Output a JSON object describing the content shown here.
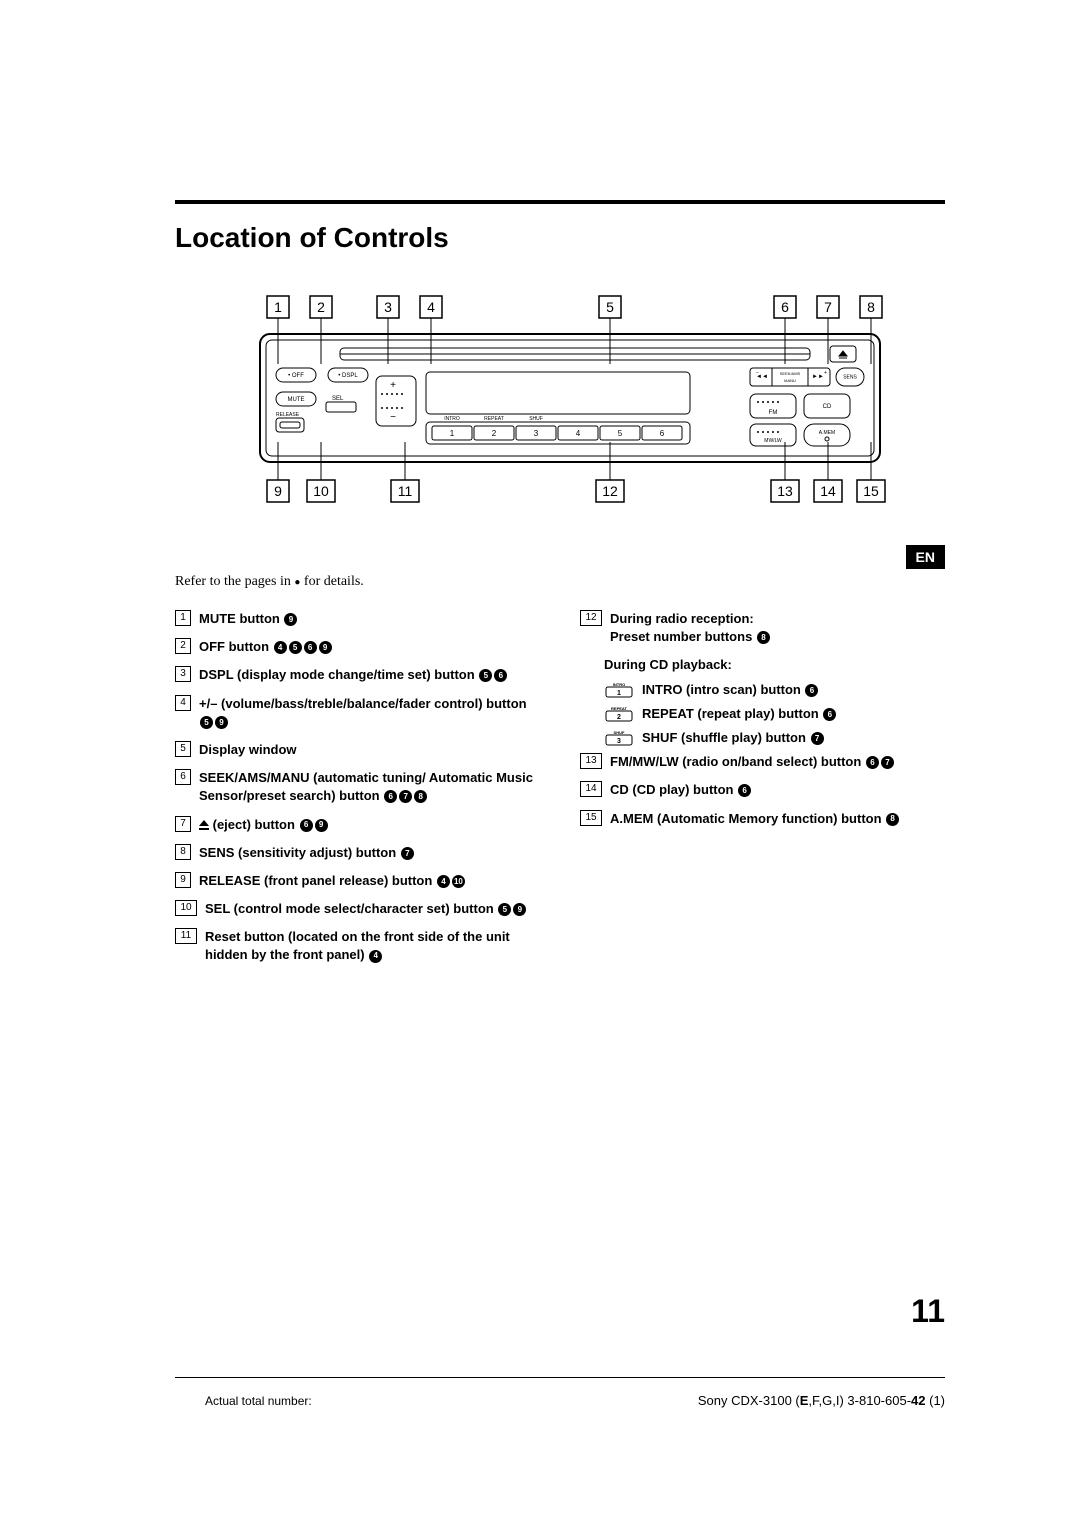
{
  "title": "Location of Controls",
  "refer_text": "Refer to the pages in ● for details.",
  "lang_tab": "EN",
  "page_number": "11",
  "footer_left": "Actual total number:",
  "footer_right_prefix": "Sony CDX-3100 (",
  "footer_right_bold1": "E",
  "footer_right_rest": ",F,G,I) 3-810-605-",
  "footer_right_bold2": "42",
  "footer_right_tail": " (1)",
  "callouts_top": [
    "1",
    "2",
    "3",
    "4",
    "5",
    "6",
    "7",
    "8"
  ],
  "callouts_bottom": [
    "9",
    "10",
    "11",
    "12",
    "13",
    "14",
    "15"
  ],
  "panel_labels": {
    "off": "OFF",
    "dspl": "DSPL",
    "mute": "MUTE",
    "sel": "SEL",
    "release": "RELEASE",
    "intro": "INTRO",
    "repeat": "REPEAT",
    "shuf": "SHUF",
    "keys": [
      "1",
      "2",
      "3",
      "4",
      "5",
      "6"
    ],
    "seek": "SEEK/AMS",
    "manu": "MANU",
    "sens": "SENS",
    "fm": "FM",
    "mwlw": "MW/LW",
    "cd": "CD",
    "amem": "A.MEM"
  },
  "left_items": [
    {
      "n": "1",
      "text": "MUTE button ",
      "refs": [
        "9"
      ]
    },
    {
      "n": "2",
      "text": "OFF button ",
      "refs": [
        "4",
        "5",
        "6",
        "9"
      ]
    },
    {
      "n": "3",
      "text": "DSPL (display mode change/time set) button ",
      "refs": [
        "5",
        "6"
      ]
    },
    {
      "n": "4",
      "text": "+/– (volume/bass/treble/balance/fader control) button ",
      "refs": [
        "5",
        "9"
      ]
    },
    {
      "n": "5",
      "text": "Display window",
      "refs": []
    },
    {
      "n": "6",
      "text": "SEEK/AMS/MANU (automatic tuning/ Automatic Music Sensor/preset search) button ",
      "refs": [
        "6",
        "7",
        "8"
      ]
    },
    {
      "n": "7",
      "text": "(eject) button ",
      "eject": true,
      "refs": [
        "6",
        "9"
      ]
    },
    {
      "n": "8",
      "text": "SENS (sensitivity adjust) button ",
      "refs": [
        "7"
      ]
    },
    {
      "n": "9",
      "text": "RELEASE (front panel release) button ",
      "refs": [
        "4",
        "10"
      ]
    },
    {
      "n": "10",
      "text": "SEL (control mode select/character set) button ",
      "refs": [
        "5",
        "9"
      ]
    },
    {
      "n": "11",
      "text": "Reset button (located on the front side of the unit hidden by the front panel) ",
      "refs": [
        "4"
      ]
    }
  ],
  "right_header": {
    "n": "12",
    "line1": "During radio reception:",
    "line2": "Preset number buttons ",
    "refs": [
      "8"
    ]
  },
  "right_sub_header": "During CD playback:",
  "right_subs": [
    {
      "key_top": "INTRO",
      "key_num": "1",
      "text": "INTRO (intro scan) button ",
      "refs": [
        "6"
      ]
    },
    {
      "key_top": "REPEAT",
      "key_num": "2",
      "text": "REPEAT (repeat play) button ",
      "refs": [
        "6"
      ]
    },
    {
      "key_top": "SHUF",
      "key_num": "3",
      "text": "SHUF (shuffle play) button ",
      "refs": [
        "7"
      ]
    }
  ],
  "right_items": [
    {
      "n": "13",
      "text": "FM/MW/LW (radio on/band select) button ",
      "refs": [
        "6",
        "7"
      ]
    },
    {
      "n": "14",
      "text": "CD (CD play) button ",
      "refs": [
        "6"
      ]
    },
    {
      "n": "15",
      "text": "A.MEM (Automatic Memory function) button ",
      "refs": [
        "8"
      ]
    }
  ],
  "colors": {
    "text": "#000000",
    "bg": "#ffffff"
  }
}
